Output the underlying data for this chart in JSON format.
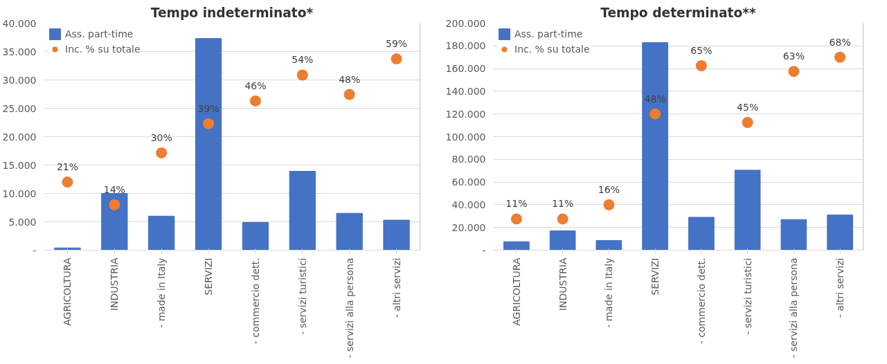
{
  "chart_data": [
    {
      "type": "bar",
      "title": "Tempo indeterminato*",
      "categories": [
        "AGRICOLTURA",
        "INDUSTRIA",
        "- made in Italy",
        "SERVIZI",
        "- commercio dett.",
        "- servizi turistici",
        "- servizi alla persona",
        "- altri servizi"
      ],
      "series": [
        {
          "name": "Ass. part-time",
          "color": "#4472c4",
          "values": [
            400,
            10000,
            6000,
            37300,
            4900,
            13900,
            6500,
            5300
          ]
        },
        {
          "name": "Inc. % su totale",
          "type": "scatter",
          "axis": "y2",
          "color": "#ed7d31",
          "marker": "circle",
          "values": [
            21,
            14,
            30,
            39,
            46,
            54,
            48,
            59
          ],
          "value_labels": [
            "21%",
            "14%",
            "30%",
            "39%",
            "46%",
            "54%",
            "48%",
            "59%"
          ]
        }
      ],
      "ylim": [
        0,
        40000
      ],
      "y2lim": [
        0,
        70
      ],
      "yticks": [
        {
          "value": 0,
          "label": "-"
        },
        {
          "value": 5000,
          "label": "5.000"
        },
        {
          "value": 10000,
          "label": "10.000"
        },
        {
          "value": 15000,
          "label": "15.000"
        },
        {
          "value": 20000,
          "label": "20.000"
        },
        {
          "value": 25000,
          "label": "25.000"
        },
        {
          "value": 30000,
          "label": "30.000"
        },
        {
          "value": 35000,
          "label": "35.000"
        },
        {
          "value": 40000,
          "label": "40.000"
        }
      ],
      "grid": "y",
      "legend": "top left"
    },
    {
      "type": "bar",
      "title": "Tempo determinato**",
      "categories": [
        "AGRICOLTURA",
        "INDUSTRIA",
        "- made in Italy",
        "SERVIZI",
        "- commercio dett.",
        "- servizi turistici",
        "- servizi alla persona",
        "- altri servizi"
      ],
      "series": [
        {
          "name": "Ass. part-time",
          "color": "#4472c4",
          "values": [
            7500,
            17000,
            8500,
            183000,
            29000,
            70500,
            27000,
            31000
          ]
        },
        {
          "name": "Inc. % su totale",
          "type": "scatter",
          "axis": "y2",
          "color": "#ed7d31",
          "marker": "circle",
          "values": [
            11,
            11,
            16,
            48,
            65,
            45,
            63,
            68
          ],
          "value_labels": [
            "11%",
            "11%",
            "16%",
            "48%",
            "65%",
            "45%",
            "63%",
            "68%"
          ]
        }
      ],
      "ylim": [
        0,
        200000
      ],
      "y2lim": [
        0,
        80
      ],
      "yticks": [
        {
          "value": 0,
          "label": "-"
        },
        {
          "value": 20000,
          "label": "20.000"
        },
        {
          "value": 40000,
          "label": "40.000"
        },
        {
          "value": 60000,
          "label": "60.000"
        },
        {
          "value": 80000,
          "label": "80.000"
        },
        {
          "value": 100000,
          "label": "100.000"
        },
        {
          "value": 120000,
          "label": "120.000"
        },
        {
          "value": 140000,
          "label": "140.000"
        },
        {
          "value": 160000,
          "label": "160.000"
        },
        {
          "value": 180000,
          "label": "180.000"
        },
        {
          "value": 200000,
          "label": "200.000"
        }
      ],
      "grid": "y",
      "legend": "top left"
    }
  ]
}
